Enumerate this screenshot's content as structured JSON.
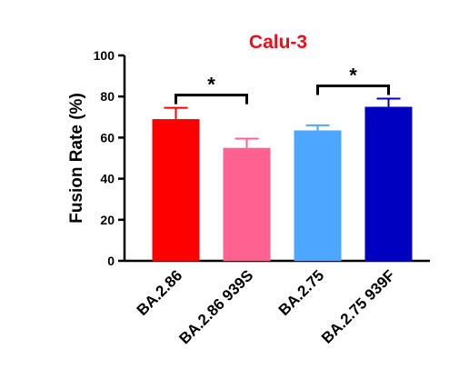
{
  "chart_data": {
    "type": "bar",
    "title": "Calu-3",
    "xlabel": "",
    "ylabel": "Fusion Rate (%)",
    "ylim": [
      0,
      100
    ],
    "yticks": [
      "0",
      "20",
      "40",
      "60",
      "80",
      "100"
    ],
    "grid": false,
    "legend": "none",
    "categories": [
      "BA.2.86",
      "BA.2.86 939S",
      "BA.2.75",
      "BA.2.75 939F"
    ],
    "values": [
      69,
      55,
      63.5,
      75
    ],
    "errors": [
      5.5,
      4.5,
      2.5,
      4
    ],
    "colors": [
      "#ff0000",
      "#ff6291",
      "#4da6ff",
      "#0000c0"
    ],
    "significance": [
      {
        "from": 0,
        "to": 1,
        "label": "*"
      },
      {
        "from": 2,
        "to": 3,
        "label": "*"
      }
    ]
  }
}
